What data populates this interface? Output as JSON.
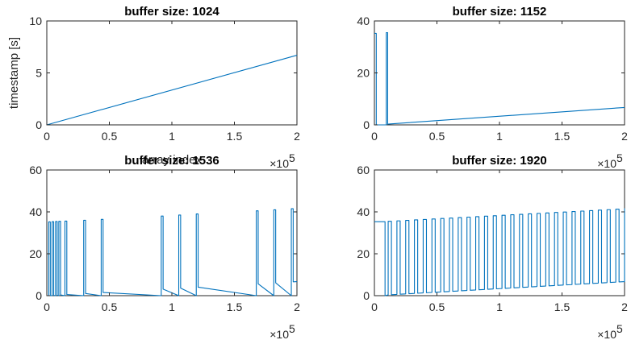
{
  "colors": {
    "series": "#0072BD",
    "axes": "#262626"
  },
  "chart_data": [
    {
      "type": "line",
      "title": "buffer size: 1024",
      "xlabel": "array index",
      "ylabel": "timestamp [s]",
      "x_exponent_label": "×10",
      "x_exponent_power": "5",
      "xlim": [
        0,
        200000
      ],
      "ylim": [
        0,
        10
      ],
      "xticks": [
        0,
        50000,
        100000,
        150000,
        200000
      ],
      "xtick_labels": [
        "0",
        "0.5",
        "1",
        "1.5",
        "2"
      ],
      "yticks": [
        0,
        5,
        10
      ],
      "ytick_labels": [
        "0",
        "5",
        "10"
      ],
      "grid": false,
      "series": [
        {
          "x": [
            0,
            200000
          ],
          "y": [
            0,
            6.7
          ]
        }
      ]
    },
    {
      "type": "line",
      "title": "buffer size: 1152",
      "xlabel": "",
      "ylabel": "",
      "x_exponent_label": "×10",
      "x_exponent_power": "5",
      "xlim": [
        0,
        200000
      ],
      "ylim": [
        0,
        40
      ],
      "xticks": [
        0,
        50000,
        100000,
        150000,
        200000
      ],
      "xtick_labels": [
        "0",
        "0.5",
        "1",
        "1.5",
        "2"
      ],
      "yticks": [
        0,
        20,
        40
      ],
      "ytick_labels": [
        "0",
        "20",
        "40"
      ],
      "grid": false,
      "series": [
        {
          "x": [
            0,
            1500,
            1500,
            9500,
            9500,
            10600,
            10600,
            200000
          ],
          "y": [
            35.2,
            35.2,
            0,
            0,
            35.5,
            35.5,
            0.3,
            6.7
          ]
        }
      ]
    },
    {
      "type": "line",
      "title": "buffer size: 1536",
      "xlabel": "",
      "ylabel": "",
      "x_exponent_label": "×10",
      "x_exponent_power": "5",
      "xlim": [
        0,
        200000
      ],
      "ylim": [
        0,
        60
      ],
      "xticks": [
        0,
        50000,
        100000,
        150000,
        200000
      ],
      "xtick_labels": [
        "0",
        "0.5",
        "1",
        "1.5",
        "2"
      ],
      "yticks": [
        0,
        20,
        40,
        60
      ],
      "ytick_labels": [
        "0",
        "20",
        "40",
        "60"
      ],
      "grid": false,
      "baseline": {
        "x": [
          0,
          200000
        ],
        "y": [
          0,
          6.7
        ]
      },
      "spikes": [
        {
          "x0": 1500,
          "x1": 2800,
          "y": 35.2
        },
        {
          "x0": 4200,
          "x1": 5500,
          "y": 35.3
        },
        {
          "x0": 7000,
          "x1": 8300,
          "y": 35.4
        },
        {
          "x0": 9600,
          "x1": 11000,
          "y": 35.5
        },
        {
          "x0": 14500,
          "x1": 16000,
          "y": 35.6
        },
        {
          "x0": 29500,
          "x1": 31000,
          "y": 36.0
        },
        {
          "x0": 43500,
          "x1": 45000,
          "y": 36.4
        },
        {
          "x0": 91500,
          "x1": 93000,
          "y": 38.0
        },
        {
          "x0": 105500,
          "x1": 107000,
          "y": 38.5
        },
        {
          "x0": 119500,
          "x1": 121000,
          "y": 39.0
        },
        {
          "x0": 167500,
          "x1": 169000,
          "y": 40.5
        },
        {
          "x0": 181500,
          "x1": 183000,
          "y": 41.0
        },
        {
          "x0": 195500,
          "x1": 197000,
          "y": 41.5
        }
      ]
    },
    {
      "type": "line",
      "title": "buffer size: 1920",
      "xlabel": "",
      "ylabel": "",
      "x_exponent_label": "×10",
      "x_exponent_power": "5",
      "xlim": [
        0,
        200000
      ],
      "ylim": [
        0,
        60
      ],
      "xticks": [
        0,
        50000,
        100000,
        150000,
        200000
      ],
      "xtick_labels": [
        "0",
        "0.5",
        "1",
        "1.5",
        "2"
      ],
      "yticks": [
        0,
        20,
        40,
        60
      ],
      "ytick_labels": [
        "0",
        "20",
        "40",
        "60"
      ],
      "grid": false,
      "baseline": {
        "x": [
          0,
          200000
        ],
        "y": [
          0,
          6.7
        ]
      },
      "initial_level": 35.3,
      "initial_end_x": 8500,
      "spike_period": 7000,
      "spike_start": 11000,
      "spike_width": 2600,
      "spike_y_start": 35.5,
      "spike_y_end": 41.5
    }
  ]
}
